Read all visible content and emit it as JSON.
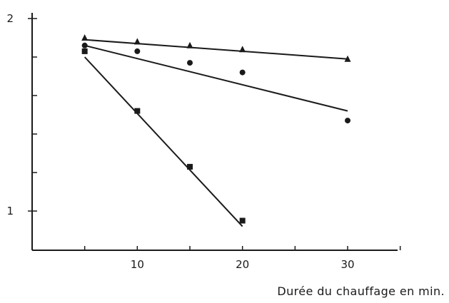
{
  "chart_data": {
    "type": "scatter",
    "title": "",
    "xlabel": "Durée du chauffage en min.",
    "ylabel": "",
    "x_ticks": [
      10,
      20,
      30
    ],
    "y_ticks": [
      1,
      2
    ],
    "xlim": [
      0,
      35
    ],
    "ylim": [
      0.9,
      2
    ],
    "grid": false,
    "legend": "none",
    "series": [
      {
        "marker": "triangle",
        "points": [
          [
            5,
            1.9
          ],
          [
            10,
            1.88
          ],
          [
            15,
            1.86
          ],
          [
            20,
            1.84
          ],
          [
            30,
            1.79
          ]
        ],
        "fit": [
          [
            5,
            1.89
          ],
          [
            30,
            1.79
          ]
        ]
      },
      {
        "marker": "circle",
        "points": [
          [
            5,
            1.86
          ],
          [
            10,
            1.83
          ],
          [
            15,
            1.77
          ],
          [
            20,
            1.72
          ],
          [
            30,
            1.47
          ]
        ],
        "fit": [
          [
            5,
            1.86
          ],
          [
            30,
            1.52
          ]
        ]
      },
      {
        "marker": "square",
        "points": [
          [
            5,
            1.83
          ],
          [
            10,
            1.52
          ],
          [
            15,
            1.23
          ],
          [
            20,
            0.95
          ]
        ],
        "fit": [
          [
            5,
            1.8
          ],
          [
            20,
            0.92
          ]
        ]
      }
    ]
  }
}
